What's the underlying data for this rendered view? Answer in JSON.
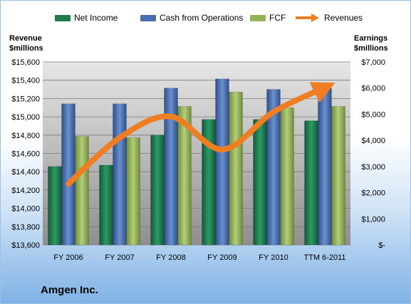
{
  "legend": {
    "net_income": "Net Income",
    "cash_from_operations": "Cash from Operations",
    "fcf": "FCF",
    "revenues": "Revenues"
  },
  "left_axis_title": {
    "line1": "Revenue",
    "line2": "$millions"
  },
  "right_axis_title": {
    "line1": "Earnings",
    "line2": "$millions"
  },
  "footer_text": "Amgen Inc.",
  "colors": {
    "net_income": "#1f7a4d",
    "cash_from_operations": "#4a6fb0",
    "fcf": "#93b35a",
    "revenues": "#ef7d22"
  },
  "chart_data": {
    "type": "bar",
    "categories": [
      "FY 2006",
      "FY 2007",
      "FY 2008",
      "FY 2009",
      "FY 2010",
      "TTM 6-2011"
    ],
    "series": [
      {
        "name": "Net Income",
        "axis": "right",
        "values": [
          3000,
          3050,
          4200,
          4800,
          4800,
          4750
        ]
      },
      {
        "name": "Cash from Operations",
        "axis": "right",
        "values": [
          5400,
          5400,
          6000,
          6350,
          5950,
          6000
        ]
      },
      {
        "name": "FCF",
        "axis": "right",
        "values": [
          4150,
          4100,
          5300,
          5850,
          5250,
          5300
        ]
      },
      {
        "name": "Revenues",
        "axis": "left",
        "type": "line",
        "values": [
          14268,
          14771,
          15003,
          14642,
          15053,
          15320
        ]
      }
    ],
    "y_left": {
      "min": 13600,
      "max": 15600,
      "step": 200,
      "tick_labels": [
        "$13,600",
        "$13,800",
        "$14,000",
        "$14,200",
        "$14,400",
        "$14,600",
        "$14,800",
        "$15,000",
        "$15,200",
        "$15,400",
        "$15,600"
      ]
    },
    "y_right": {
      "min": 0,
      "max": 7000,
      "step": 1000,
      "tick_labels": [
        "$-",
        "$1,000",
        "$2,000",
        "$3,000",
        "$4,000",
        "$5,000",
        "$6,000",
        "$7,000"
      ]
    },
    "grid": true,
    "legend_position": "top"
  }
}
